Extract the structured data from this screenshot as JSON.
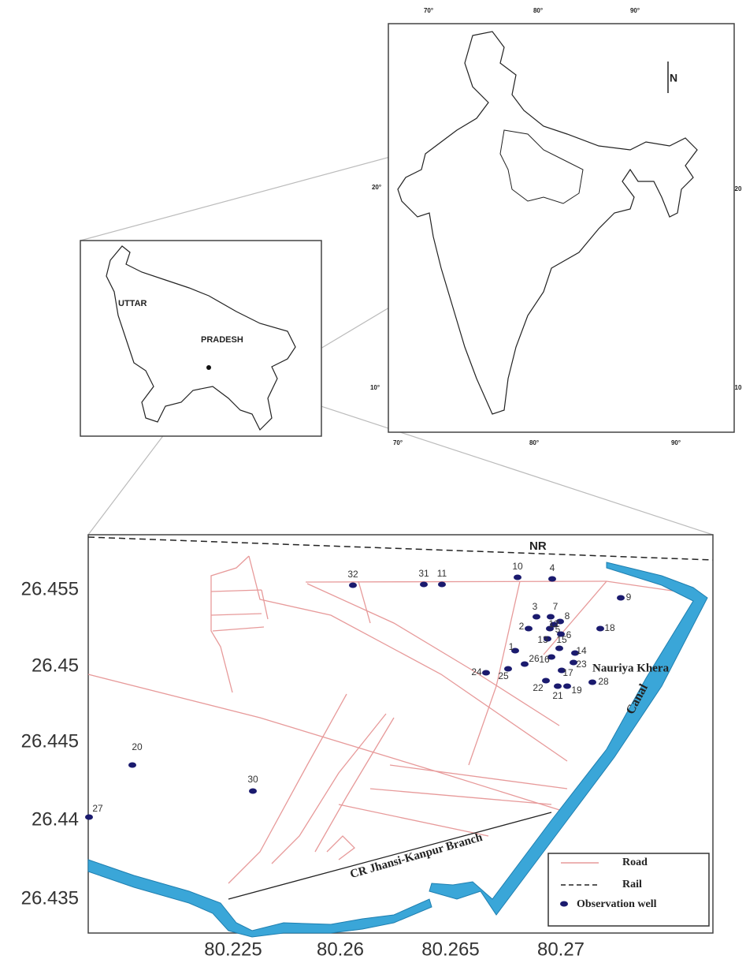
{
  "india_map": {
    "top_ticks": [
      "70°",
      "80°",
      "90°"
    ],
    "bottom_ticks": [
      "70°",
      "80°",
      "90°"
    ],
    "left_ticks": [
      "20°",
      "10°"
    ],
    "right_ticks": [
      "20",
      "10"
    ],
    "north": "N"
  },
  "state_map": {
    "labels": [
      "UTTAR",
      "PRADESH"
    ]
  },
  "site_map": {
    "y_ticks": [
      "26.455",
      "26.45",
      "26.445",
      "26.44",
      "26.435"
    ],
    "x_ticks": [
      "80.225",
      "80.26",
      "80.265",
      "80.27"
    ],
    "labels": {
      "rail": "NR",
      "village": "Nauriya Khera",
      "canal": "Canal",
      "railway": "CR Jhansi-Kanpur Branch"
    },
    "wells": [
      "32",
      "31",
      "11",
      "10",
      "4",
      "9",
      "18",
      "3",
      "7",
      "8",
      "2",
      "5",
      "6",
      "13",
      "12",
      "1",
      "14",
      "15",
      "16",
      "23",
      "26",
      "25",
      "24",
      "17",
      "22",
      "21",
      "19",
      "28",
      "20",
      "30",
      "27"
    ],
    "legend": [
      "Road",
      "Rail",
      "Observation well"
    ]
  }
}
